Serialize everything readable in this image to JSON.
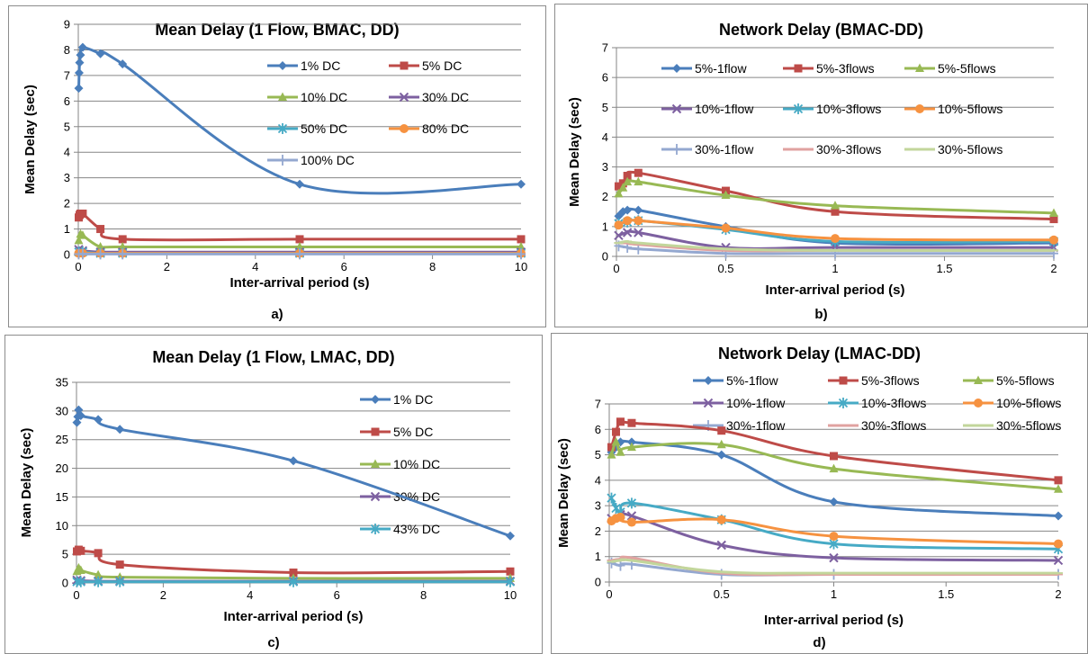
{
  "chart_data": [
    {
      "id": "a",
      "type": "line",
      "title": "Mean Delay (1 Flow, BMAC, DD)",
      "xlabel": "Inter-arrival period (s)",
      "ylabel": "Mean Delay (sec)",
      "caption": "a)",
      "xlim": [
        0,
        10
      ],
      "xticks": [
        0,
        2,
        4,
        6,
        8,
        10
      ],
      "ylim": [
        0,
        9
      ],
      "yticks": [
        0,
        1,
        2,
        3,
        4,
        5,
        6,
        7,
        8,
        9
      ],
      "legend": "right",
      "series": [
        {
          "name": "1% DC",
          "color": "#4a7ebb",
          "marker": "diamond",
          "points": [
            [
              0.01,
              6.5
            ],
            [
              0.02,
              7.1
            ],
            [
              0.03,
              7.5
            ],
            [
              0.05,
              7.8
            ],
            [
              0.1,
              8.1
            ],
            [
              0.5,
              7.85
            ],
            [
              1,
              7.45
            ],
            [
              5,
              2.75
            ],
            [
              10,
              2.75
            ]
          ]
        },
        {
          "name": "5% DC",
          "color": "#be4b48",
          "marker": "square",
          "points": [
            [
              0.01,
              1.45
            ],
            [
              0.03,
              1.55
            ],
            [
              0.05,
              1.6
            ],
            [
              0.1,
              1.6
            ],
            [
              0.5,
              1.0
            ],
            [
              1,
              0.6
            ],
            [
              5,
              0.6
            ],
            [
              10,
              0.6
            ]
          ]
        },
        {
          "name": "10% DC",
          "color": "#98b954",
          "marker": "triangle",
          "points": [
            [
              0.01,
              0.55
            ],
            [
              0.05,
              0.8
            ],
            [
              0.1,
              0.75
            ],
            [
              0.5,
              0.3
            ],
            [
              1,
              0.3
            ],
            [
              5,
              0.3
            ],
            [
              10,
              0.3
            ]
          ]
        },
        {
          "name": "30% DC",
          "color": "#7d60a0",
          "marker": "x",
          "points": [
            [
              0.01,
              0.2
            ],
            [
              0.1,
              0.15
            ],
            [
              0.5,
              0.1
            ],
            [
              1,
              0.1
            ],
            [
              5,
              0.1
            ],
            [
              10,
              0.1
            ]
          ]
        },
        {
          "name": "50% DC",
          "color": "#46aac5",
          "marker": "star",
          "points": [
            [
              0.01,
              0.1
            ],
            [
              0.1,
              0.1
            ],
            [
              0.5,
              0.05
            ],
            [
              1,
              0.05
            ],
            [
              5,
              0.05
            ],
            [
              10,
              0.05
            ]
          ]
        },
        {
          "name": "80% DC",
          "color": "#f69240",
          "marker": "circle",
          "points": [
            [
              0.01,
              0.05
            ],
            [
              0.1,
              0.05
            ],
            [
              0.5,
              0.05
            ],
            [
              1,
              0.05
            ],
            [
              5,
              0.05
            ],
            [
              10,
              0.05
            ]
          ]
        },
        {
          "name": "100% DC",
          "color": "#94a8d0",
          "marker": "plus",
          "points": [
            [
              0.01,
              0.02
            ],
            [
              0.1,
              0.02
            ],
            [
              0.5,
              0.02
            ],
            [
              1,
              0.02
            ],
            [
              5,
              0.02
            ],
            [
              10,
              0.02
            ]
          ]
        }
      ]
    },
    {
      "id": "b",
      "type": "line",
      "title": "Network Delay (BMAC-DD)",
      "xlabel": "Inter-arrival period (s)",
      "ylabel": "Mean Delay (sec)",
      "caption": "b)",
      "xlim": [
        0,
        2
      ],
      "xticks": [
        0,
        0.5,
        1,
        1.5,
        2
      ],
      "ylim": [
        0,
        7
      ],
      "yticks": [
        0,
        1,
        2,
        3,
        4,
        5,
        6,
        7
      ],
      "legend": "top",
      "series": [
        {
          "name": "5%-1flow",
          "color": "#4a7ebb",
          "marker": "diamond",
          "points": [
            [
              0.01,
              1.35
            ],
            [
              0.03,
              1.5
            ],
            [
              0.05,
              1.55
            ],
            [
              0.1,
              1.55
            ],
            [
              0.5,
              1.0
            ],
            [
              1,
              0.45
            ],
            [
              2,
              0.45
            ]
          ]
        },
        {
          "name": "5%-3flows",
          "color": "#be4b48",
          "marker": "square",
          "points": [
            [
              0.01,
              2.35
            ],
            [
              0.03,
              2.45
            ],
            [
              0.05,
              2.7
            ],
            [
              0.1,
              2.8
            ],
            [
              0.5,
              2.2
            ],
            [
              1,
              1.5
            ],
            [
              2,
              1.25
            ]
          ]
        },
        {
          "name": "5%-5flows",
          "color": "#98b954",
          "marker": "triangle",
          "points": [
            [
              0.01,
              2.1
            ],
            [
              0.03,
              2.3
            ],
            [
              0.05,
              2.5
            ],
            [
              0.1,
              2.5
            ],
            [
              0.5,
              2.05
            ],
            [
              1,
              1.7
            ],
            [
              2,
              1.45
            ]
          ]
        },
        {
          "name": "10%-1flow",
          "color": "#7d60a0",
          "marker": "x",
          "points": [
            [
              0.01,
              0.7
            ],
            [
              0.05,
              0.8
            ],
            [
              0.1,
              0.8
            ],
            [
              0.5,
              0.3
            ],
            [
              1,
              0.3
            ],
            [
              2,
              0.3
            ]
          ]
        },
        {
          "name": "10%-3flows",
          "color": "#46aac5",
          "marker": "star",
          "points": [
            [
              0.01,
              1.1
            ],
            [
              0.05,
              1.15
            ],
            [
              0.1,
              1.2
            ],
            [
              0.5,
              0.9
            ],
            [
              1,
              0.5
            ],
            [
              2,
              0.5
            ]
          ]
        },
        {
          "name": "10%-5flows",
          "color": "#f69240",
          "marker": "circle",
          "points": [
            [
              0.01,
              1.05
            ],
            [
              0.05,
              1.2
            ],
            [
              0.1,
              1.2
            ],
            [
              0.5,
              0.95
            ],
            [
              1,
              0.6
            ],
            [
              2,
              0.55
            ]
          ]
        },
        {
          "name": "30%-1flow",
          "color": "#94a8d0",
          "marker": "plus",
          "points": [
            [
              0.01,
              0.35
            ],
            [
              0.05,
              0.3
            ],
            [
              0.1,
              0.25
            ],
            [
              0.5,
              0.1
            ],
            [
              1,
              0.1
            ],
            [
              2,
              0.1
            ]
          ]
        },
        {
          "name": "30%-3flows",
          "color": "#e0a2a0",
          "marker": "dash",
          "points": [
            [
              0.01,
              0.45
            ],
            [
              0.05,
              0.45
            ],
            [
              0.1,
              0.4
            ],
            [
              0.5,
              0.2
            ],
            [
              1,
              0.2
            ],
            [
              2,
              0.2
            ]
          ]
        },
        {
          "name": "30%-5flows",
          "color": "#c2d69b",
          "marker": "dash",
          "points": [
            [
              0.01,
              0.45
            ],
            [
              0.05,
              0.5
            ],
            [
              0.1,
              0.45
            ],
            [
              0.5,
              0.25
            ],
            [
              1,
              0.2
            ],
            [
              2,
              0.2
            ]
          ]
        }
      ]
    },
    {
      "id": "c",
      "type": "line",
      "title": "Mean Delay (1 Flow, LMAC, DD)",
      "xlabel": "Inter-arrival period (s)",
      "ylabel": "Mean Delay (sec)",
      "caption": "c)",
      "xlim": [
        0,
        10
      ],
      "xticks": [
        0,
        2,
        4,
        6,
        8,
        10
      ],
      "ylim": [
        0,
        35
      ],
      "yticks": [
        0,
        5,
        10,
        15,
        20,
        25,
        30,
        35
      ],
      "legend": "right",
      "series": [
        {
          "name": "1% DC",
          "color": "#4a7ebb",
          "marker": "diamond",
          "points": [
            [
              0.01,
              28.0
            ],
            [
              0.03,
              29.0
            ],
            [
              0.05,
              30.2
            ],
            [
              0.1,
              29.2
            ],
            [
              0.5,
              28.5
            ],
            [
              1,
              26.8
            ],
            [
              5,
              21.3
            ],
            [
              10,
              8.2
            ]
          ]
        },
        {
          "name": "5% DC",
          "color": "#be4b48",
          "marker": "square",
          "points": [
            [
              0.01,
              5.5
            ],
            [
              0.05,
              5.8
            ],
            [
              0.1,
              5.6
            ],
            [
              0.5,
              5.2
            ],
            [
              1,
              3.2
            ],
            [
              5,
              1.8
            ],
            [
              10,
              2.0
            ]
          ]
        },
        {
          "name": "10% DC",
          "color": "#98b954",
          "marker": "triangle",
          "points": [
            [
              0.01,
              2.0
            ],
            [
              0.05,
              2.6
            ],
            [
              0.1,
              2.2
            ],
            [
              0.5,
              1.4
            ],
            [
              1,
              1.0
            ],
            [
              5,
              0.8
            ],
            [
              10,
              0.8
            ]
          ]
        },
        {
          "name": "30% DC",
          "color": "#7d60a0",
          "marker": "x",
          "points": [
            [
              0.01,
              0.5
            ],
            [
              0.1,
              0.4
            ],
            [
              0.5,
              0.3
            ],
            [
              1,
              0.3
            ],
            [
              5,
              0.3
            ],
            [
              10,
              0.3
            ]
          ]
        },
        {
          "name": "43% DC",
          "color": "#46aac5",
          "marker": "star",
          "points": [
            [
              0.01,
              0.2
            ],
            [
              0.1,
              0.2
            ],
            [
              0.5,
              0.2
            ],
            [
              1,
              0.2
            ],
            [
              5,
              0.2
            ],
            [
              10,
              0.2
            ]
          ]
        }
      ]
    },
    {
      "id": "d",
      "type": "line",
      "title": "Network Delay (LMAC-DD)",
      "xlabel": "Inter-arrival period (s)",
      "ylabel": "Mean Delay (sec)",
      "caption": "d)",
      "xlim": [
        0,
        2
      ],
      "xticks": [
        0,
        0.5,
        1,
        1.5,
        2
      ],
      "ylim": [
        0,
        7
      ],
      "yticks": [
        0,
        1,
        2,
        3,
        4,
        5,
        6,
        7
      ],
      "legend": "top",
      "series": [
        {
          "name": "5%-1flow",
          "color": "#4a7ebb",
          "marker": "diamond",
          "points": [
            [
              0.01,
              5.1
            ],
            [
              0.03,
              5.3
            ],
            [
              0.05,
              5.5
            ],
            [
              0.1,
              5.5
            ],
            [
              0.5,
              5.0
            ],
            [
              1,
              3.15
            ],
            [
              2,
              2.6
            ]
          ]
        },
        {
          "name": "5%-3flows",
          "color": "#be4b48",
          "marker": "square",
          "points": [
            [
              0.01,
              5.3
            ],
            [
              0.03,
              5.9
            ],
            [
              0.05,
              6.3
            ],
            [
              0.1,
              6.25
            ],
            [
              0.5,
              5.95
            ],
            [
              1,
              4.95
            ],
            [
              2,
              4.0
            ]
          ]
        },
        {
          "name": "5%-5flows",
          "color": "#98b954",
          "marker": "triangle",
          "points": [
            [
              0.01,
              5.0
            ],
            [
              0.03,
              5.5
            ],
            [
              0.05,
              5.1
            ],
            [
              0.1,
              5.3
            ],
            [
              0.5,
              5.4
            ],
            [
              1,
              4.45
            ],
            [
              2,
              3.65
            ]
          ]
        },
        {
          "name": "10%-1flow",
          "color": "#7d60a0",
          "marker": "x",
          "points": [
            [
              0.01,
              2.5
            ],
            [
              0.05,
              2.65
            ],
            [
              0.1,
              2.6
            ],
            [
              0.5,
              1.45
            ],
            [
              1,
              0.95
            ],
            [
              2,
              0.85
            ]
          ]
        },
        {
          "name": "10%-3flows",
          "color": "#46aac5",
          "marker": "star",
          "points": [
            [
              0.01,
              3.3
            ],
            [
              0.03,
              2.9
            ],
            [
              0.05,
              2.75
            ],
            [
              0.1,
              3.1
            ],
            [
              0.5,
              2.45
            ],
            [
              1,
              1.5
            ],
            [
              2,
              1.3
            ]
          ]
        },
        {
          "name": "10%-5flows",
          "color": "#f69240",
          "marker": "circle",
          "points": [
            [
              0.01,
              2.4
            ],
            [
              0.03,
              2.5
            ],
            [
              0.05,
              2.55
            ],
            [
              0.1,
              2.35
            ],
            [
              0.5,
              2.45
            ],
            [
              1,
              1.8
            ],
            [
              2,
              1.5
            ]
          ]
        },
        {
          "name": "30%-1flow",
          "color": "#94a8d0",
          "marker": "plus",
          "points": [
            [
              0.01,
              0.75
            ],
            [
              0.05,
              0.65
            ],
            [
              0.1,
              0.7
            ],
            [
              0.5,
              0.3
            ],
            [
              1,
              0.3
            ],
            [
              2,
              0.3
            ]
          ]
        },
        {
          "name": "30%-3flows",
          "color": "#e0a2a0",
          "marker": "dash",
          "points": [
            [
              0.01,
              0.85
            ],
            [
              0.05,
              0.9
            ],
            [
              0.1,
              0.95
            ],
            [
              0.5,
              0.35
            ],
            [
              1,
              0.3
            ],
            [
              2,
              0.3
            ]
          ]
        },
        {
          "name": "30%-5flows",
          "color": "#c2d69b",
          "marker": "dash",
          "points": [
            [
              0.01,
              0.8
            ],
            [
              0.05,
              0.85
            ],
            [
              0.1,
              0.85
            ],
            [
              0.5,
              0.4
            ],
            [
              1,
              0.35
            ],
            [
              2,
              0.35
            ]
          ]
        }
      ]
    }
  ]
}
